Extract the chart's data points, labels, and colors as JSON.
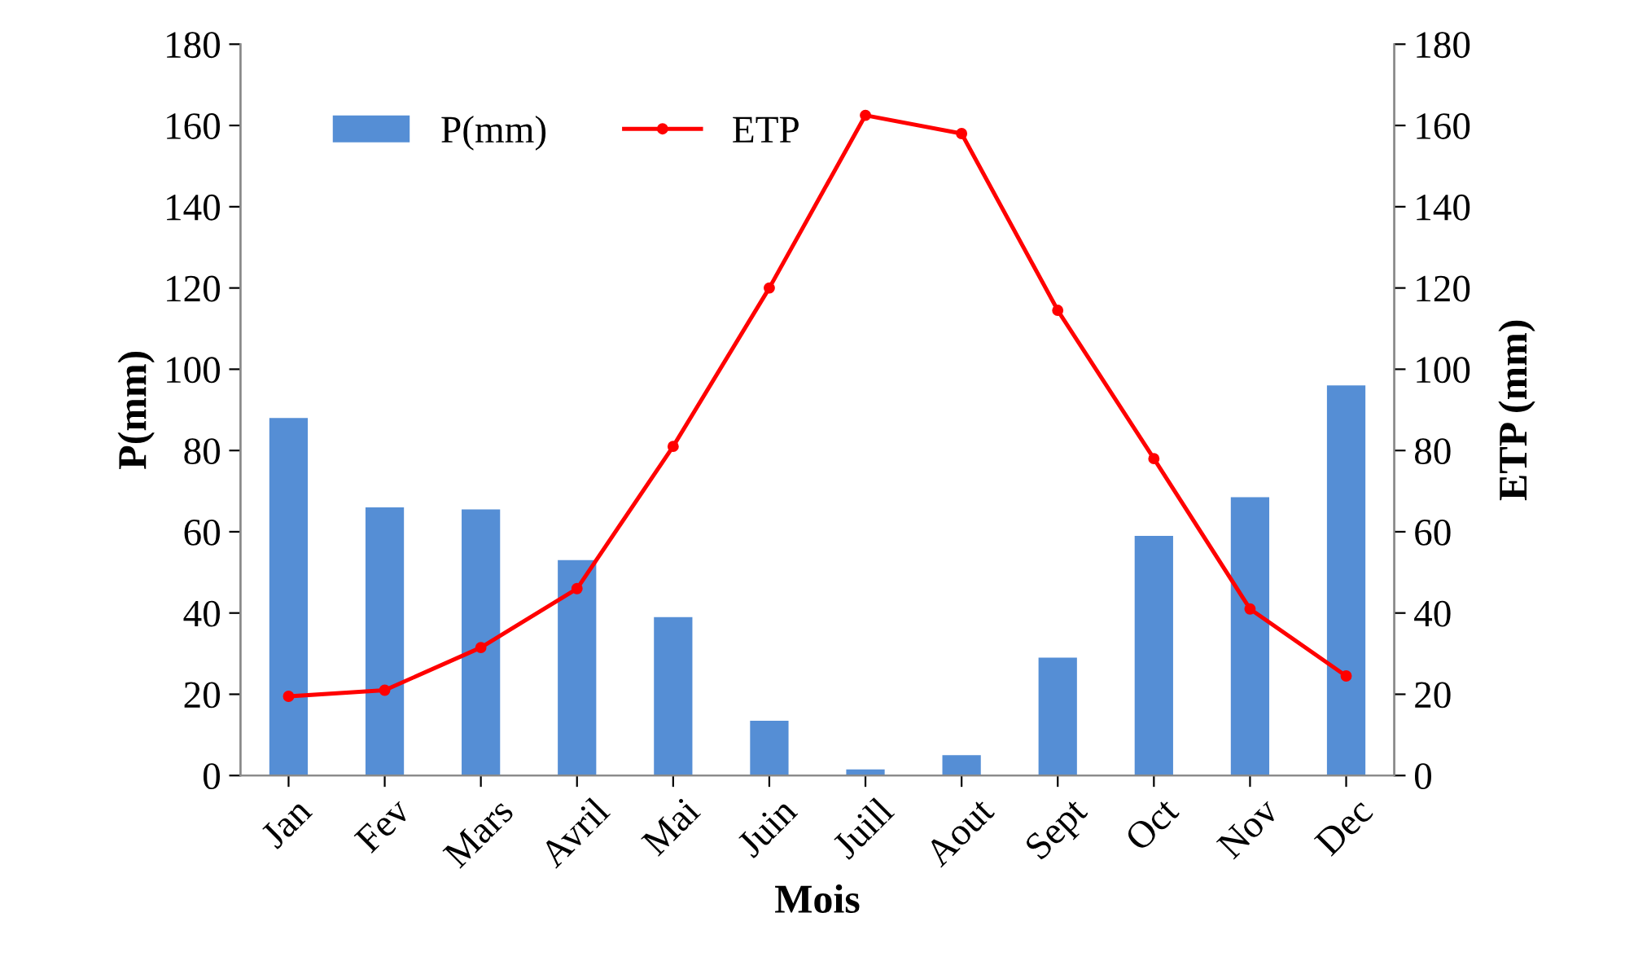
{
  "chart_data": {
    "type": "bar",
    "xlabel": "Mois",
    "ylabel": "P(mm)",
    "y2label": "ETP (mm)",
    "categories": [
      "Jan",
      "Fev",
      "Mars",
      "Avril",
      "Mai",
      "Juin",
      "Juill",
      "Aout",
      "Sept",
      "Oct",
      "Nov",
      "Dec"
    ],
    "series": [
      {
        "name": "P(mm)",
        "color": "#558ed5",
        "values": [
          88,
          66,
          65.5,
          53,
          39,
          13.5,
          1.5,
          5,
          29,
          59,
          68.5,
          96
        ]
      },
      {
        "name": "ETP",
        "type": "line",
        "axis": "y2",
        "color": "#ff0000",
        "marker": "circle",
        "values": [
          19.5,
          21,
          31.5,
          46,
          81,
          120,
          162.5,
          158,
          114.5,
          78,
          41,
          24.5
        ]
      }
    ],
    "ylim": [
      0,
      180
    ],
    "yticks": [
      0,
      20,
      40,
      60,
      80,
      100,
      120,
      140,
      160,
      180
    ],
    "y2lim": [
      0,
      180
    ],
    "y2ticks": [
      0,
      20,
      40,
      60,
      80,
      100,
      120,
      140,
      160,
      180
    ],
    "legend": "top left",
    "grid": false
  }
}
